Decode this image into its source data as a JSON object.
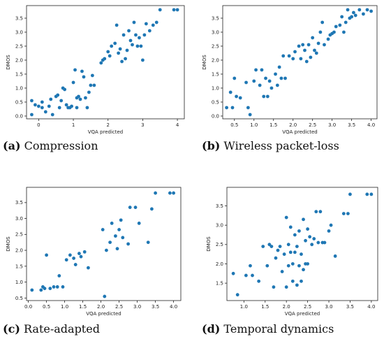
{
  "chart_data": [
    {
      "type": "scatter",
      "label": "(a)",
      "caption": "Compression",
      "xlabel": "VQA predicted",
      "ylabel": "DMOS",
      "xlim": [
        -0.35,
        4.2
      ],
      "ylim": [
        -0.1,
        3.95
      ],
      "xticks": [
        0,
        1,
        2,
        3,
        4
      ],
      "yticks": [
        0.0,
        0.5,
        1.0,
        1.5,
        2.0,
        2.5,
        3.0,
        3.5
      ],
      "ytick_labels": [
        "0.0",
        "0.5",
        "1.0",
        "1.5",
        "2.0",
        "2.5",
        "3.0",
        "3.5"
      ],
      "color": "#1f77b4",
      "x": [
        -0.2,
        -0.2,
        -0.1,
        0.0,
        0.1,
        0.1,
        0.2,
        0.3,
        0.35,
        0.4,
        0.5,
        0.55,
        0.6,
        0.65,
        0.7,
        0.75,
        0.8,
        0.85,
        0.9,
        0.95,
        1.0,
        1.05,
        1.1,
        1.1,
        1.15,
        1.2,
        1.25,
        1.3,
        1.35,
        1.4,
        1.45,
        1.5,
        1.55,
        1.6,
        1.8,
        1.85,
        1.9,
        2.0,
        2.05,
        2.1,
        2.2,
        2.25,
        2.3,
        2.35,
        2.4,
        2.45,
        2.5,
        2.55,
        2.6,
        2.65,
        2.7,
        2.75,
        2.8,
        2.85,
        2.9,
        2.95,
        3.0,
        3.05,
        3.1,
        3.2,
        3.3,
        3.4,
        3.5,
        3.9,
        4.0
      ],
      "y": [
        0.55,
        0.05,
        0.4,
        0.35,
        0.3,
        0.5,
        0.15,
        0.35,
        0.6,
        0.05,
        0.7,
        0.75,
        0.3,
        0.55,
        1.0,
        0.95,
        0.4,
        0.3,
        0.3,
        0.35,
        1.2,
        1.65,
        0.65,
        0.3,
        0.7,
        0.6,
        1.6,
        1.4,
        0.65,
        0.3,
        0.85,
        1.1,
        1.45,
        1.1,
        1.9,
        2.0,
        2.05,
        2.3,
        2.15,
        2.5,
        2.6,
        3.25,
        2.25,
        2.4,
        1.95,
        2.9,
        2.05,
        2.35,
        3.05,
        2.7,
        2.55,
        3.35,
        2.9,
        2.5,
        2.8,
        2.5,
        2.0,
        2.9,
        3.3,
        3.05,
        3.25,
        3.35,
        3.8,
        3.8,
        3.8
      ]
    },
    {
      "type": "scatter",
      "label": "(b)",
      "caption": "Wireless packet-loss",
      "xlabel": "VQA predicted",
      "ylabel": "DMOS",
      "xlim": [
        0.2,
        4.15
      ],
      "ylim": [
        -0.1,
        3.95
      ],
      "xticks": [
        0.5,
        1.0,
        1.5,
        2.0,
        2.5,
        3.0,
        3.5,
        4.0
      ],
      "xtick_labels": [
        "0.5",
        "1.0",
        "1.5",
        "2.0",
        "2.5",
        "3.0",
        "3.5",
        "4.0"
      ],
      "yticks": [
        0.0,
        0.5,
        1.0,
        1.5,
        2.0,
        2.5,
        3.0,
        3.5
      ],
      "ytick_labels": [
        "0.0",
        "0.5",
        "1.0",
        "1.5",
        "2.0",
        "2.5",
        "3.0",
        "3.5"
      ],
      "color": "#1f77b4",
      "x": [
        0.3,
        0.4,
        0.45,
        0.5,
        0.55,
        0.65,
        0.8,
        0.85,
        0.9,
        1.0,
        1.05,
        1.15,
        1.2,
        1.25,
        1.3,
        1.35,
        1.4,
        1.45,
        1.55,
        1.6,
        1.65,
        1.7,
        1.75,
        1.8,
        1.9,
        2.0,
        2.05,
        2.15,
        2.2,
        2.25,
        2.3,
        2.35,
        2.4,
        2.45,
        2.5,
        2.55,
        2.6,
        2.65,
        2.7,
        2.75,
        2.8,
        2.9,
        2.95,
        3.0,
        3.05,
        3.1,
        3.2,
        3.25,
        3.3,
        3.35,
        3.4,
        3.45,
        3.5,
        3.55,
        3.6,
        3.7,
        3.8,
        3.9,
        4.0
      ],
      "y": [
        0.3,
        0.85,
        0.3,
        1.35,
        0.7,
        0.65,
        1.2,
        0.3,
        0.05,
        1.25,
        1.65,
        1.1,
        1.65,
        0.7,
        1.35,
        0.7,
        1.25,
        1.0,
        1.5,
        1.1,
        1.75,
        1.35,
        2.15,
        1.35,
        2.15,
        2.05,
        2.3,
        2.5,
        2.05,
        2.55,
        2.35,
        1.95,
        2.55,
        2.1,
        2.8,
        2.35,
        2.25,
        2.6,
        3.0,
        3.35,
        2.55,
        2.75,
        2.9,
        2.95,
        3.0,
        3.2,
        3.25,
        3.55,
        3.0,
        3.35,
        3.8,
        3.5,
        3.55,
        3.7,
        3.6,
        3.8,
        3.65,
        3.8,
        3.75
      ]
    },
    {
      "type": "scatter",
      "label": "(c)",
      "caption": "Rate-adapted",
      "xlabel": "VQA predicted",
      "ylabel": "DMOS",
      "xlim": [
        -0.05,
        4.2
      ],
      "ylim": [
        0.42,
        3.98
      ],
      "xticks": [
        0.0,
        0.5,
        1.0,
        1.5,
        2.0,
        2.5,
        3.0,
        3.5,
        4.0
      ],
      "xtick_labels": [
        "0.0",
        "0.5",
        "1.0",
        "1.5",
        "2.0",
        "2.5",
        "3.0",
        "3.5",
        "4.0"
      ],
      "yticks": [
        0.5,
        1.0,
        1.5,
        2.0,
        2.5,
        3.0,
        3.5
      ],
      "ytick_labels": [
        "0.5",
        "1.0",
        "1.5",
        "2.0",
        "2.5",
        "3.0",
        "3.5"
      ],
      "color": "#1f77b4",
      "x": [
        0.1,
        0.35,
        0.4,
        0.45,
        0.5,
        0.6,
        0.7,
        0.8,
        0.85,
        0.95,
        1.05,
        1.15,
        1.25,
        1.3,
        1.4,
        1.45,
        1.55,
        1.65,
        2.05,
        2.1,
        2.15,
        2.25,
        2.3,
        2.4,
        2.45,
        2.5,
        2.55,
        2.6,
        2.75,
        2.8,
        2.95,
        3.05,
        3.3,
        3.4,
        3.5,
        3.9,
        4.0
      ],
      "y": [
        0.75,
        0.75,
        0.85,
        0.8,
        1.85,
        0.8,
        0.85,
        0.85,
        1.2,
        0.85,
        1.7,
        1.85,
        1.75,
        1.55,
        1.9,
        1.8,
        1.95,
        1.45,
        2.65,
        0.55,
        2.0,
        2.25,
        2.85,
        2.45,
        2.05,
        2.65,
        2.95,
        2.4,
        2.2,
        3.35,
        3.35,
        2.85,
        2.25,
        3.3,
        3.8,
        3.8,
        3.8
      ]
    },
    {
      "type": "scatter",
      "label": "(d)",
      "caption": "Temporal dynamics",
      "xlabel": "VQA predicted",
      "ylabel": "DMOS",
      "xlim": [
        0.6,
        4.15
      ],
      "ylim": [
        1.05,
        3.98
      ],
      "xticks": [
        1.0,
        1.5,
        2.0,
        2.5,
        3.0,
        3.5,
        4.0
      ],
      "xtick_labels": [
        "1.0",
        "1.5",
        "2.0",
        "2.5",
        "3.0",
        "3.5",
        "4.0"
      ],
      "yticks": [
        1.5,
        2.0,
        2.5,
        3.0,
        3.5
      ],
      "ytick_labels": [
        "1.5",
        "2.0",
        "2.5",
        "3.0",
        "3.5"
      ],
      "color": "#1f77b4",
      "x": [
        0.75,
        0.85,
        1.05,
        1.15,
        1.2,
        1.35,
        1.45,
        1.55,
        1.6,
        1.65,
        1.7,
        1.75,
        1.8,
        1.85,
        1.9,
        1.95,
        2.0,
        2.0,
        2.05,
        2.05,
        2.1,
        2.1,
        2.15,
        2.15,
        2.2,
        2.2,
        2.25,
        2.25,
        2.3,
        2.3,
        2.35,
        2.35,
        2.4,
        2.4,
        2.45,
        2.45,
        2.5,
        2.5,
        2.55,
        2.6,
        2.65,
        2.7,
        2.75,
        2.8,
        2.85,
        2.9,
        3.0,
        3.05,
        3.15,
        3.35,
        3.45,
        3.5,
        3.9,
        4.0
      ],
      "y": [
        1.75,
        1.2,
        1.7,
        1.95,
        1.7,
        1.55,
        2.45,
        1.95,
        2.5,
        2.45,
        1.4,
        2.15,
        2.35,
        2.45,
        1.8,
        2.25,
        3.2,
        1.4,
        2.5,
        1.95,
        2.95,
        2.3,
        1.55,
        2.0,
        2.75,
        2.3,
        1.45,
        2.45,
        1.95,
        2.85,
        1.55,
        2.25,
        3.15,
        1.85,
        2.6,
        2.0,
        2.9,
        2.0,
        2.7,
        2.5,
        2.65,
        3.35,
        2.55,
        3.35,
        2.55,
        2.55,
        2.85,
        3.0,
        2.2,
        3.3,
        3.3,
        3.8,
        3.8,
        3.8
      ]
    }
  ]
}
